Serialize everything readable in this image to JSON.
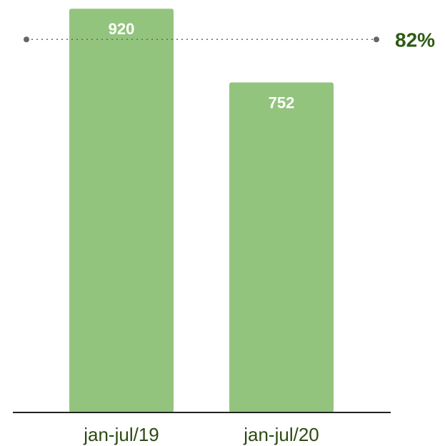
{
  "chart_data": {
    "type": "bar",
    "categories": [
      "jan-jul/19",
      "jan-jul/20"
    ],
    "values": [
      920,
      752
    ],
    "data_labels": [
      "920",
      "752"
    ],
    "ylim": [
      0,
      1000
    ],
    "grid": false,
    "reference_line": {
      "value": 850,
      "label": "82%",
      "style": "dotted"
    },
    "colors": {
      "bar": "#93c47d",
      "axis": "#222222",
      "reference_line": "#666666",
      "reference_label": "#2e5a14",
      "category_label": "#2e4a12",
      "data_label": "#ffffff"
    }
  }
}
